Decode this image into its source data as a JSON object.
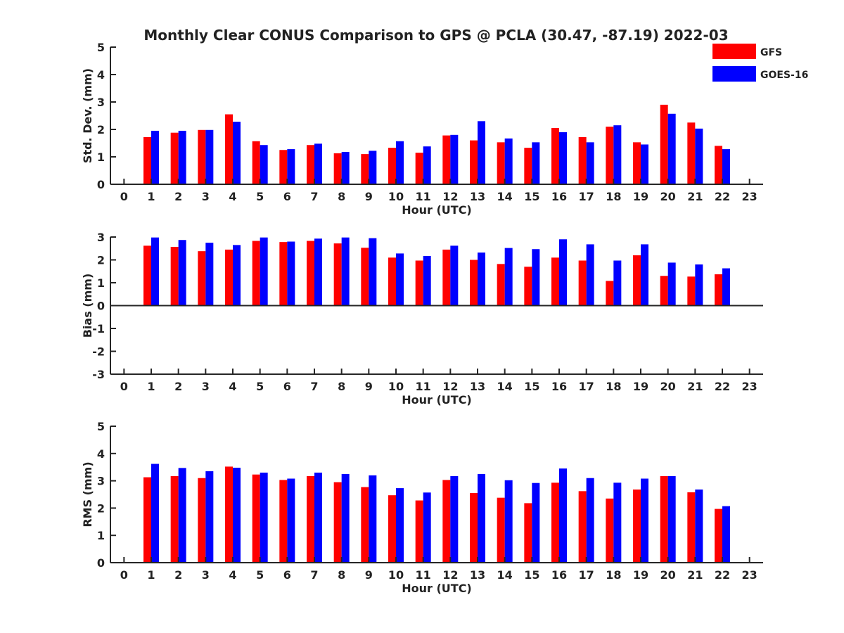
{
  "title": "Monthly Clear CONUS Comparison to GPS @ PCLA (30.47, -87.19) 2022-03",
  "colors": {
    "GFS": "#ff0000",
    "GOES-16": "#0000ff",
    "axis": "#262626"
  },
  "legend": {
    "placement": "top-right",
    "entries": [
      "GFS",
      "GOES-16"
    ]
  },
  "chart_data": [
    {
      "type": "bar",
      "name": "stddev",
      "xlabel": "Hour (UTC)",
      "ylabel": "Std. Dev. (mm)",
      "x": [
        0,
        1,
        2,
        3,
        4,
        5,
        6,
        7,
        8,
        9,
        10,
        11,
        12,
        13,
        14,
        15,
        16,
        17,
        18,
        19,
        20,
        21,
        22,
        23
      ],
      "xticks": [
        "0",
        "1",
        "2",
        "3",
        "4",
        "5",
        "6",
        "7",
        "8",
        "9",
        "10",
        "11",
        "12",
        "13",
        "14",
        "15",
        "16",
        "17",
        "18",
        "19",
        "20",
        "21",
        "22",
        "23"
      ],
      "ylim": [
        0,
        5
      ],
      "yticks": [
        "0",
        "1",
        "2",
        "3",
        "4",
        "5"
      ],
      "series": [
        {
          "name": "GFS",
          "values": [
            null,
            1.72,
            1.88,
            1.98,
            2.55,
            1.57,
            1.25,
            1.43,
            1.13,
            1.1,
            1.33,
            1.15,
            1.78,
            1.6,
            1.53,
            1.33,
            2.05,
            1.72,
            2.1,
            1.53,
            2.9,
            2.25,
            1.4,
            null
          ]
        },
        {
          "name": "GOES-16",
          "values": [
            null,
            1.95,
            1.95,
            1.98,
            2.28,
            1.43,
            1.28,
            1.48,
            1.18,
            1.22,
            1.57,
            1.38,
            1.8,
            2.3,
            1.67,
            1.53,
            1.9,
            1.53,
            2.15,
            1.45,
            2.57,
            2.03,
            1.28,
            null
          ]
        }
      ]
    },
    {
      "type": "bar",
      "name": "bias",
      "xlabel": "Hour (UTC)",
      "ylabel": "Bias (mm)",
      "x": [
        0,
        1,
        2,
        3,
        4,
        5,
        6,
        7,
        8,
        9,
        10,
        11,
        12,
        13,
        14,
        15,
        16,
        17,
        18,
        19,
        20,
        21,
        22,
        23
      ],
      "xticks": [
        "0",
        "1",
        "2",
        "3",
        "4",
        "5",
        "6",
        "7",
        "8",
        "9",
        "10",
        "11",
        "12",
        "13",
        "14",
        "15",
        "16",
        "17",
        "18",
        "19",
        "20",
        "21",
        "22",
        "23"
      ],
      "ylim": [
        -3,
        3
      ],
      "yticks": [
        "-3",
        "-2",
        "-1",
        "0",
        "1",
        "2",
        "3"
      ],
      "series": [
        {
          "name": "GFS",
          "values": [
            null,
            2.62,
            2.57,
            2.38,
            2.45,
            2.83,
            2.78,
            2.83,
            2.72,
            2.53,
            2.1,
            1.97,
            2.45,
            2.0,
            1.82,
            1.7,
            2.1,
            1.97,
            1.08,
            2.2,
            1.3,
            1.27,
            1.37,
            null
          ]
        },
        {
          "name": "GOES-16",
          "values": [
            null,
            2.98,
            2.87,
            2.75,
            2.65,
            2.98,
            2.8,
            2.93,
            2.98,
            2.95,
            2.28,
            2.17,
            2.62,
            2.32,
            2.52,
            2.47,
            2.9,
            2.68,
            1.97,
            2.68,
            1.88,
            1.8,
            1.63,
            null
          ]
        }
      ]
    },
    {
      "type": "bar",
      "name": "rms",
      "xlabel": "Hour (UTC)",
      "ylabel": "RMS (mm)",
      "x": [
        0,
        1,
        2,
        3,
        4,
        5,
        6,
        7,
        8,
        9,
        10,
        11,
        12,
        13,
        14,
        15,
        16,
        17,
        18,
        19,
        20,
        21,
        22,
        23
      ],
      "xticks": [
        "0",
        "1",
        "2",
        "3",
        "4",
        "5",
        "6",
        "7",
        "8",
        "9",
        "10",
        "11",
        "12",
        "13",
        "14",
        "15",
        "16",
        "17",
        "18",
        "19",
        "20",
        "21",
        "22",
        "23"
      ],
      "ylim": [
        0,
        5
      ],
      "yticks": [
        "0",
        "1",
        "2",
        "3",
        "4",
        "5"
      ],
      "series": [
        {
          "name": "GFS",
          "values": [
            null,
            3.13,
            3.17,
            3.1,
            3.52,
            3.23,
            3.03,
            3.17,
            2.95,
            2.77,
            2.47,
            2.28,
            3.03,
            2.55,
            2.38,
            2.18,
            2.93,
            2.62,
            2.35,
            2.68,
            3.17,
            2.58,
            1.97,
            null
          ]
        },
        {
          "name": "GOES-16",
          "values": [
            null,
            3.62,
            3.47,
            3.35,
            3.48,
            3.3,
            3.08,
            3.3,
            3.25,
            3.2,
            2.73,
            2.57,
            3.17,
            3.25,
            3.02,
            2.92,
            3.45,
            3.1,
            2.93,
            3.08,
            3.17,
            2.68,
            2.07,
            null
          ]
        }
      ]
    }
  ]
}
